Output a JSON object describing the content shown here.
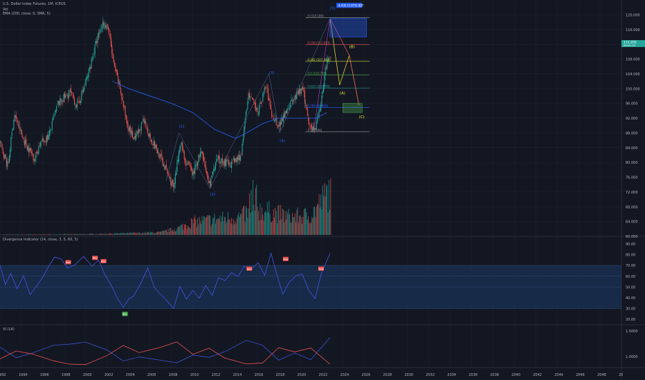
{
  "header": {
    "symbol_title": "U.S. Dollar Index Futures, 1M, ICEUS",
    "vol_label": "Vol",
    "ema_label": "EMA (200, close, 0, SMA, 5)",
    "divergence_label": "Divergence Indicator (14, close, 3, 5, 60, 5)",
    "vi_label": "VI (14)"
  },
  "colors": {
    "background": "#131722",
    "grid": "#1f2430",
    "axis_text": "#b2b5be",
    "bull": "#26a69a",
    "bear": "#ef5350",
    "ema": "#2962ff",
    "rsi_line": "#3f51d8",
    "rsi_band": "#1c3a66",
    "vi_plus": "#3f51d8",
    "vi_minus": "#ef5350",
    "price_badge": "#26a69a",
    "target_box": "#2962ff",
    "fib_colors": [
      "#9c9c9c",
      "#ef5350",
      "#cddc39",
      "#4caf50",
      "#26a69a",
      "#2962ff",
      "#9c9c9c"
    ]
  },
  "chart_data": [
    {
      "type": "candlestick",
      "panel": "price",
      "ylim": [
        60,
        124
      ],
      "xlim": [
        1992,
        2050
      ],
      "x_ticks": [
        "1992",
        "1994",
        "1996",
        "1998",
        "2000",
        "2002",
        "2004",
        "2006",
        "2008",
        "2010",
        "2012",
        "2014",
        "2016",
        "2018",
        "2020",
        "2022",
        "2024",
        "2026",
        "2028",
        "2030",
        "2032",
        "2034",
        "2036",
        "2038",
        "2040",
        "2042",
        "2044",
        "2046",
        "2048",
        "20"
      ],
      "y_ticks": [
        "120.000",
        "116.000",
        "112.000",
        "108.000",
        "104.000",
        "100.000",
        "96.000",
        "92.000",
        "88.000",
        "84.000",
        "80.000",
        "76.000",
        "72.000",
        "68.000",
        "64.000",
        "60.000"
      ],
      "price_path": [
        [
          1992,
          85
        ],
        [
          1992.7,
          79
        ],
        [
          1993.3,
          93
        ],
        [
          1994.2,
          86
        ],
        [
          1995.2,
          81
        ],
        [
          1995.7,
          85
        ],
        [
          1996.5,
          87
        ],
        [
          1997.4,
          96
        ],
        [
          1998.5,
          99
        ],
        [
          1999.2,
          95
        ],
        [
          2000.1,
          103
        ],
        [
          2001,
          113
        ],
        [
          2001.6,
          118
        ],
        [
          2002.1,
          116
        ],
        [
          2002.6,
          106
        ],
        [
          2003.1,
          101
        ],
        [
          2003.8,
          91
        ],
        [
          2004.5,
          86
        ],
        [
          2005.4,
          91
        ],
        [
          2006,
          87
        ],
        [
          2007,
          81
        ],
        [
          2008.2,
          73
        ],
        [
          2008.8,
          86
        ],
        [
          2009.3,
          80
        ],
        [
          2010,
          77
        ],
        [
          2010.7,
          83
        ],
        [
          2011.5,
          74
        ],
        [
          2012.3,
          81
        ],
        [
          2013,
          80
        ],
        [
          2013.7,
          80
        ],
        [
          2014.5,
          82
        ],
        [
          2015.1,
          98
        ],
        [
          2016.1,
          94
        ],
        [
          2016.8,
          101
        ],
        [
          2017.3,
          93
        ],
        [
          2018,
          90
        ],
        [
          2018.8,
          95
        ],
        [
          2019.6,
          98
        ],
        [
          2020.2,
          100
        ],
        [
          2020.8,
          91
        ],
        [
          2021.3,
          89
        ],
        [
          2021.9,
          95
        ],
        [
          2022.3,
          105
        ],
        [
          2022.8,
          109
        ]
      ],
      "volume_path": [
        [
          1992,
          0.3
        ],
        [
          2000,
          0.6
        ],
        [
          2005,
          1.5
        ],
        [
          2007,
          2
        ],
        [
          2008.5,
          5
        ],
        [
          2010,
          10
        ],
        [
          2012,
          12
        ],
        [
          2014.5,
          14
        ],
        [
          2015.5,
          20
        ],
        [
          2017,
          18
        ],
        [
          2019,
          14
        ],
        [
          2021,
          15
        ],
        [
          2022.8,
          35
        ]
      ],
      "ema_200": [
        [
          2002.5,
          102
        ],
        [
          2004,
          100
        ],
        [
          2006,
          98
        ],
        [
          2008,
          96
        ],
        [
          2010,
          93.5
        ],
        [
          2012,
          89
        ],
        [
          2014,
          86.5
        ],
        [
          2015,
          88
        ],
        [
          2016.5,
          90.5
        ],
        [
          2018,
          92
        ],
        [
          2020,
          92
        ],
        [
          2021.5,
          92
        ],
        [
          2022.5,
          93.5
        ]
      ],
      "last_price": "112.200",
      "last_price_sub": "00:01:25",
      "fib_levels": [
        {
          "ratio": "0 (119.185)",
          "value": 119.185
        },
        {
          "ratio": "0.236 (111.893)",
          "value": 111.893
        },
        {
          "ratio": "0.382 (107.383)",
          "value": 107.383
        },
        {
          "ratio": "0.5 (103.739)",
          "value": 103.739
        },
        {
          "ratio": "0.618 (100.095)",
          "value": 100.095
        },
        {
          "ratio": "0.786 (94.906)",
          "value": 94.906
        },
        {
          "ratio": "1 (88.294)",
          "value": 88.294
        }
      ],
      "target_label": "-4.435 (3.875) 887",
      "wave_labels": [
        {
          "text": "(1)",
          "x": 2008.7,
          "y": 89.5,
          "color": "#2962ff"
        },
        {
          "text": "(2)",
          "x": 2011.6,
          "y": 71,
          "color": "#2962ff"
        },
        {
          "text": "(3)",
          "x": 2017.1,
          "y": 104,
          "color": "#2962ff"
        },
        {
          "text": "(4)",
          "x": 2018.1,
          "y": 85.5,
          "color": "#2962ff"
        },
        {
          "text": "(5)",
          "x": 2022.8,
          "y": 121.5,
          "color": "#2962ff"
        },
        {
          "text": "(A)",
          "x": 2023.7,
          "y": 98.5,
          "color": "#ffeb3b"
        },
        {
          "text": "(B)",
          "x": 2024.6,
          "y": 111,
          "color": "#ffeb3b"
        },
        {
          "text": "(C)",
          "x": 2025.5,
          "y": 92,
          "color": "#ffeb3b"
        }
      ]
    },
    {
      "type": "line",
      "panel": "divergence",
      "series": [
        {
          "values": [
            [
              1992,
              70
            ],
            [
              1992.5,
              52
            ],
            [
              1993,
              62
            ],
            [
              1993.6,
              48
            ],
            [
              1994.2,
              60
            ],
            [
              1994.8,
              44
            ],
            [
              1995.4,
              52
            ],
            [
              1996,
              60
            ],
            [
              1996.5,
              68
            ],
            [
              1997.1,
              78
            ],
            [
              1997.7,
              75
            ],
            [
              1998.3,
              68
            ],
            [
              1999,
              72
            ],
            [
              1999.8,
              78
            ],
            [
              2000.6,
              70
            ],
            [
              2001.2,
              74
            ],
            [
              2001.8,
              60
            ],
            [
              2002.4,
              52
            ],
            [
              2003,
              40
            ],
            [
              2003.5,
              30
            ],
            [
              2004,
              38
            ],
            [
              2004.5,
              42
            ],
            [
              2005.2,
              55
            ],
            [
              2005.8,
              68
            ],
            [
              2006.4,
              48
            ],
            [
              2007,
              44
            ],
            [
              2007.6,
              38
            ],
            [
              2008.2,
              30
            ],
            [
              2008.8,
              52
            ],
            [
              2009.4,
              38
            ],
            [
              2010,
              48
            ],
            [
              2010.6,
              40
            ],
            [
              2011.2,
              52
            ],
            [
              2011.8,
              42
            ],
            [
              2012.4,
              60
            ],
            [
              2013,
              55
            ],
            [
              2013.6,
              64
            ],
            [
              2014.2,
              58
            ],
            [
              2014.8,
              70
            ],
            [
              2015.4,
              66
            ],
            [
              2016.1,
              72
            ],
            [
              2016.7,
              60
            ],
            [
              2017.3,
              80
            ],
            [
              2017.9,
              60
            ],
            [
              2018.4,
              44
            ],
            [
              2019,
              54
            ],
            [
              2019.6,
              60
            ],
            [
              2020.2,
              62
            ],
            [
              2020.8,
              48
            ],
            [
              2021.4,
              40
            ],
            [
              2022,
              64
            ],
            [
              2022.8,
              80
            ]
          ]
        }
      ],
      "ylim": [
        15,
        97
      ],
      "y_ticks": [
        "90.00",
        "80.00",
        "70.00",
        "60.00",
        "50.00",
        "40.00",
        "30.00",
        "20.00"
      ],
      "band": [
        30,
        70
      ],
      "signals": [
        {
          "label": "Bear",
          "x": 1998.3,
          "y": 73,
          "kind": "bear"
        },
        {
          "label": "Bear",
          "x": 2000.8,
          "y": 77,
          "kind": "bear"
        },
        {
          "label": "Bear",
          "x": 2001.6,
          "y": 74,
          "kind": "bear"
        },
        {
          "label": "Bull",
          "x": 2003.6,
          "y": 25,
          "kind": "bull"
        },
        {
          "label": "Bear",
          "x": 2015.2,
          "y": 67,
          "kind": "bear"
        },
        {
          "label": "Bear",
          "x": 2018.6,
          "y": 76,
          "kind": "bear"
        },
        {
          "label": "Bear",
          "x": 2021.9,
          "y": 67,
          "kind": "bear"
        }
      ]
    },
    {
      "type": "line",
      "panel": "vortex",
      "ylim": [
        0.78,
        1.62
      ],
      "y_ticks": [
        "1.5000",
        "1.0000"
      ],
      "series": [
        {
          "values": [
            [
              1992,
              1.15
            ],
            [
              1993.5,
              1.0
            ],
            [
              1995,
              1.05
            ],
            [
              1997,
              1.2
            ],
            [
              1998.5,
              1.25
            ],
            [
              2000,
              1.3
            ],
            [
              2002,
              1.1
            ],
            [
              2003.5,
              0.9
            ],
            [
              2005,
              1.0
            ],
            [
              2007,
              0.95
            ],
            [
              2008.5,
              0.85
            ],
            [
              2010,
              1.05
            ],
            [
              2011.5,
              0.95
            ],
            [
              2013,
              1.1
            ],
            [
              2015,
              1.3
            ],
            [
              2016.5,
              1.2
            ],
            [
              2018,
              0.9
            ],
            [
              2019.5,
              1.05
            ],
            [
              2021,
              0.9
            ],
            [
              2022.8,
              1.35
            ]
          ]
        },
        {
          "values": [
            [
              1992,
              0.95
            ],
            [
              1993.5,
              1.1
            ],
            [
              1995,
              1.05
            ],
            [
              1997,
              0.9
            ],
            [
              1998.5,
              0.85
            ],
            [
              2000,
              0.8
            ],
            [
              2002,
              1.0
            ],
            [
              2003.5,
              1.2
            ],
            [
              2005,
              1.1
            ],
            [
              2007,
              1.15
            ],
            [
              2008.5,
              1.25
            ],
            [
              2010,
              1.0
            ],
            [
              2011.5,
              1.15
            ],
            [
              2013,
              1.0
            ],
            [
              2015,
              0.85
            ],
            [
              2016.5,
              0.9
            ],
            [
              2018,
              1.2
            ],
            [
              2019.5,
              1.05
            ],
            [
              2021,
              1.2
            ],
            [
              2022.8,
              0.85
            ]
          ]
        }
      ]
    }
  ]
}
